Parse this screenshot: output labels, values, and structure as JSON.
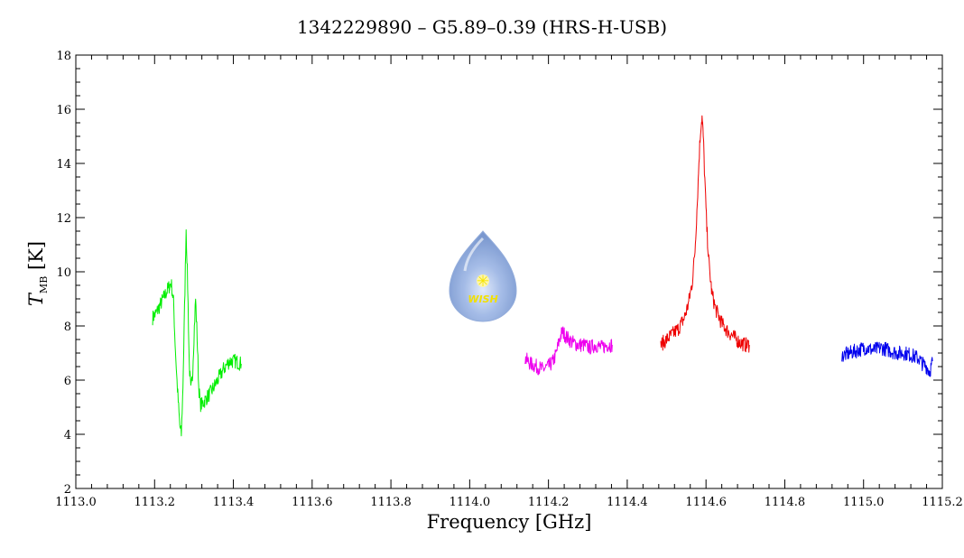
{
  "chart_data": {
    "type": "line",
    "title": "1342229890 – G5.89–0.39 (HRS-H-USB)",
    "xlabel": "Frequency [GHz]",
    "ylabel_main": "T",
    "ylabel_sub": "MB",
    "ylabel_unit": "[K]",
    "xlim": [
      1113.0,
      1115.2
    ],
    "ylim": [
      2,
      18
    ],
    "x_ticks": [
      1113.0,
      1113.2,
      1113.4,
      1113.6,
      1113.8,
      1114.0,
      1114.2,
      1114.4,
      1114.6,
      1114.8,
      1115.0,
      1115.2
    ],
    "x_tick_labels": [
      "1113.0",
      "1113.2",
      "1113.4",
      "1113.6",
      "1113.8",
      "1114.0",
      "1114.2",
      "1114.4",
      "1114.6",
      "1114.8",
      "1115.0",
      "1115.2"
    ],
    "y_ticks": [
      2,
      4,
      6,
      8,
      10,
      12,
      14,
      16,
      18
    ],
    "y_tick_labels": [
      "2",
      "4",
      "6",
      "8",
      "10",
      "12",
      "14",
      "16",
      "18"
    ],
    "logo_text": "WISH",
    "series": [
      {
        "color": "#00ee00",
        "x": [
          1113.195,
          1113.205,
          1113.215,
          1113.225,
          1113.235,
          1113.242,
          1113.248,
          1113.252,
          1113.256,
          1113.26,
          1113.264,
          1113.268,
          1113.272,
          1113.276,
          1113.28,
          1113.284,
          1113.288,
          1113.292,
          1113.296,
          1113.3,
          1113.304,
          1113.308,
          1113.312,
          1113.316,
          1113.32,
          1113.33,
          1113.345,
          1113.36,
          1113.375,
          1113.39,
          1113.405,
          1113.42
        ],
        "y": [
          8.3,
          8.5,
          8.8,
          9.1,
          9.4,
          9.6,
          8.9,
          7.4,
          6.2,
          5.2,
          4.3,
          4.0,
          5.8,
          8.6,
          11.6,
          9.5,
          6.6,
          5.6,
          6.1,
          7.6,
          9.0,
          7.6,
          5.8,
          5.1,
          5.1,
          5.3,
          5.6,
          6.0,
          6.4,
          6.7,
          6.7,
          6.6
        ]
      },
      {
        "color": "#ee00ee",
        "x": [
          1114.14,
          1114.155,
          1114.17,
          1114.185,
          1114.2,
          1114.212,
          1114.22,
          1114.228,
          1114.235,
          1114.245,
          1114.26,
          1114.275,
          1114.29,
          1114.305,
          1114.32,
          1114.335,
          1114.35,
          1114.362
        ],
        "y": [
          6.8,
          6.6,
          6.5,
          6.4,
          6.5,
          6.7,
          7.0,
          7.5,
          7.8,
          7.6,
          7.4,
          7.3,
          7.3,
          7.2,
          7.3,
          7.2,
          7.3,
          7.3
        ]
      },
      {
        "color": "#ee0000",
        "x": [
          1114.485,
          1114.5,
          1114.515,
          1114.53,
          1114.545,
          1114.555,
          1114.565,
          1114.572,
          1114.578,
          1114.583,
          1114.587,
          1114.59,
          1114.593,
          1114.597,
          1114.602,
          1114.608,
          1114.615,
          1114.625,
          1114.64,
          1114.655,
          1114.67,
          1114.685,
          1114.7,
          1114.71
        ],
        "y": [
          7.3,
          7.5,
          7.7,
          7.9,
          8.3,
          8.8,
          9.6,
          10.8,
          12.6,
          14.4,
          15.4,
          15.7,
          15.0,
          13.4,
          11.6,
          10.2,
          9.2,
          8.6,
          8.1,
          7.8,
          7.6,
          7.4,
          7.3,
          7.3
        ]
      },
      {
        "color": "#0000ee",
        "x": [
          1114.945,
          1114.965,
          1114.985,
          1115.005,
          1115.025,
          1115.045,
          1115.065,
          1115.085,
          1115.105,
          1115.125,
          1115.14,
          1115.15,
          1115.16,
          1115.168,
          1115.175
        ],
        "y": [
          6.9,
          7.0,
          7.1,
          7.2,
          7.1,
          7.2,
          7.1,
          7.0,
          7.0,
          6.9,
          6.8,
          6.6,
          6.5,
          6.3,
          6.7
        ]
      }
    ]
  }
}
